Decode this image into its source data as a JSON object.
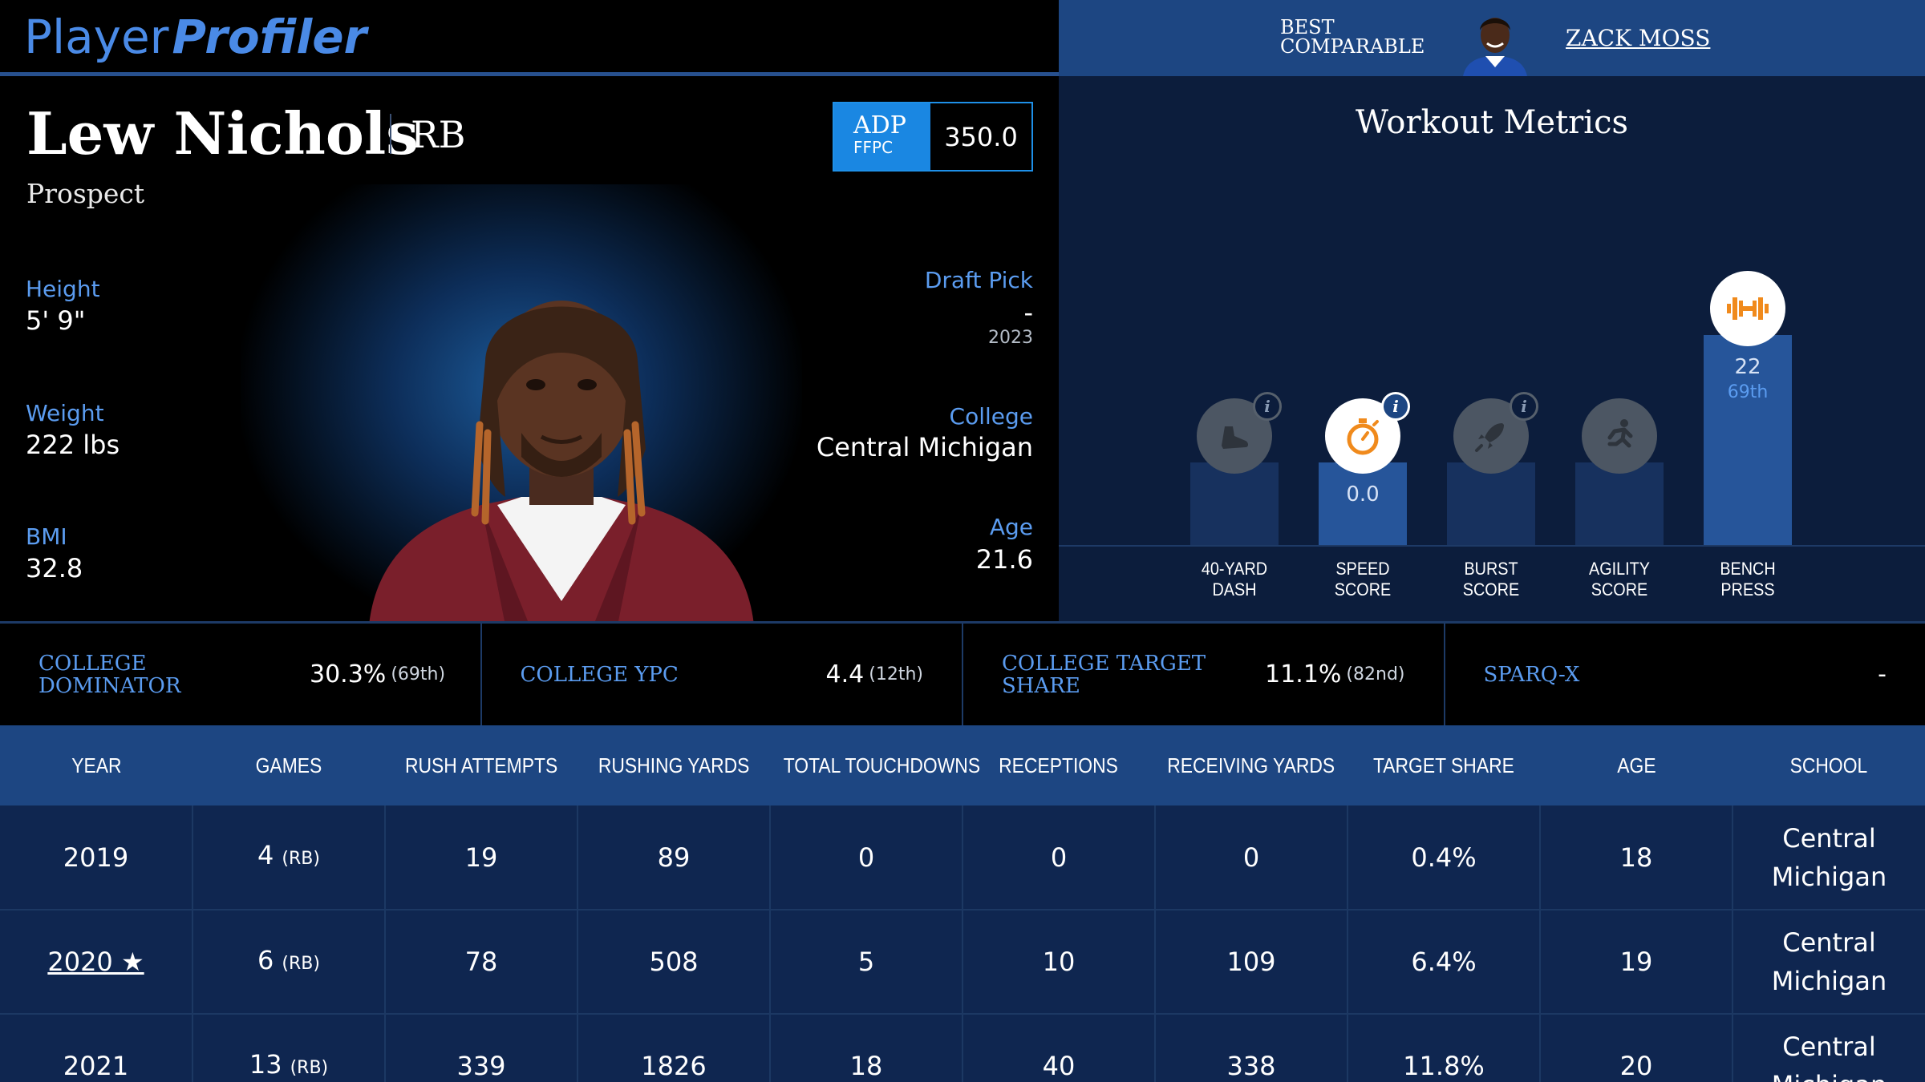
{
  "brand": {
    "part1": "Player",
    "part2": "Profiler"
  },
  "player": {
    "name": "Lew Nichols",
    "position": "RB",
    "status": "Prospect",
    "adp": {
      "label": "ADP",
      "source": "FFPC",
      "value": "350.0"
    },
    "height": {
      "label": "Height",
      "value": "5' 9\""
    },
    "weight": {
      "label": "Weight",
      "value": "222 lbs"
    },
    "bmi": {
      "label": "BMI",
      "value": "32.8"
    },
    "draft_pick": {
      "label": "Draft Pick",
      "value": "-",
      "year": "2023"
    },
    "college": {
      "label": "College",
      "value": "Central Michigan"
    },
    "age": {
      "label": "Age",
      "value": "21.6"
    }
  },
  "comparable": {
    "label": "BEST\nCOMPARABLE",
    "name": "ZACK MOSS"
  },
  "workout": {
    "title": "Workout Metrics",
    "metrics": [
      {
        "label": "40-YARD\nDASH",
        "icon": "shoe-icon",
        "value": "",
        "percentile": "",
        "level": 0.27,
        "active": false,
        "info": true
      },
      {
        "label": "SPEED\nSCORE",
        "icon": "stopwatch-icon",
        "value": "0.0",
        "percentile": "",
        "level": 0.27,
        "active": true,
        "info": true
      },
      {
        "label": "BURST\nSCORE",
        "icon": "rocket-icon",
        "value": "",
        "percentile": "",
        "level": 0.27,
        "active": false,
        "info": true
      },
      {
        "label": "AGILITY\nSCORE",
        "icon": "runner-icon",
        "value": "",
        "percentile": "",
        "level": 0.27,
        "active": false,
        "info": false
      },
      {
        "label": "BENCH\nPRESS",
        "icon": "dumbbell-icon",
        "value": "22",
        "percentile": "69th",
        "level": 0.69,
        "active": true,
        "info": false
      }
    ]
  },
  "college_stats": [
    {
      "label": "COLLEGE DOMINATOR",
      "value": "30.3%",
      "rank": "(69th)"
    },
    {
      "label": "COLLEGE YPC",
      "value": "4.4",
      "rank": "(12th)"
    },
    {
      "label": "COLLEGE TARGET SHARE",
      "value": "11.1%",
      "rank": "(82nd)"
    },
    {
      "label": "SPARQ-X",
      "value": "-",
      "rank": ""
    }
  ],
  "table": {
    "headers": [
      "YEAR",
      "GAMES",
      "RUSH ATTEMPTS",
      "RUSHING YARDS",
      "TOTAL TOUCHDOWNS",
      "RECEPTIONS",
      "RECEIVING YARDS",
      "TARGET SHARE",
      "AGE",
      "SCHOOL"
    ],
    "rows": [
      {
        "year": "2019",
        "linked": false,
        "games": "4",
        "games_pos": "(RB)",
        "rush_att": "19",
        "rush_yds": "89",
        "tds": "0",
        "rec": "0",
        "rec_yds": "0",
        "tgt_share": "0.4%",
        "age": "18",
        "school": "Central Michigan"
      },
      {
        "year": "2020 ★",
        "linked": true,
        "games": "6",
        "games_pos": "(RB)",
        "rush_att": "78",
        "rush_yds": "508",
        "tds": "5",
        "rec": "10",
        "rec_yds": "109",
        "tgt_share": "6.4%",
        "age": "19",
        "school": "Central Michigan"
      },
      {
        "year": "2021",
        "linked": false,
        "games": "13",
        "games_pos": "(RB)",
        "rush_att": "339",
        "rush_yds": "1826",
        "tds": "18",
        "rec": "40",
        "rec_yds": "338",
        "tgt_share": "11.8%",
        "age": "20",
        "school": "Central Michigan"
      }
    ]
  }
}
